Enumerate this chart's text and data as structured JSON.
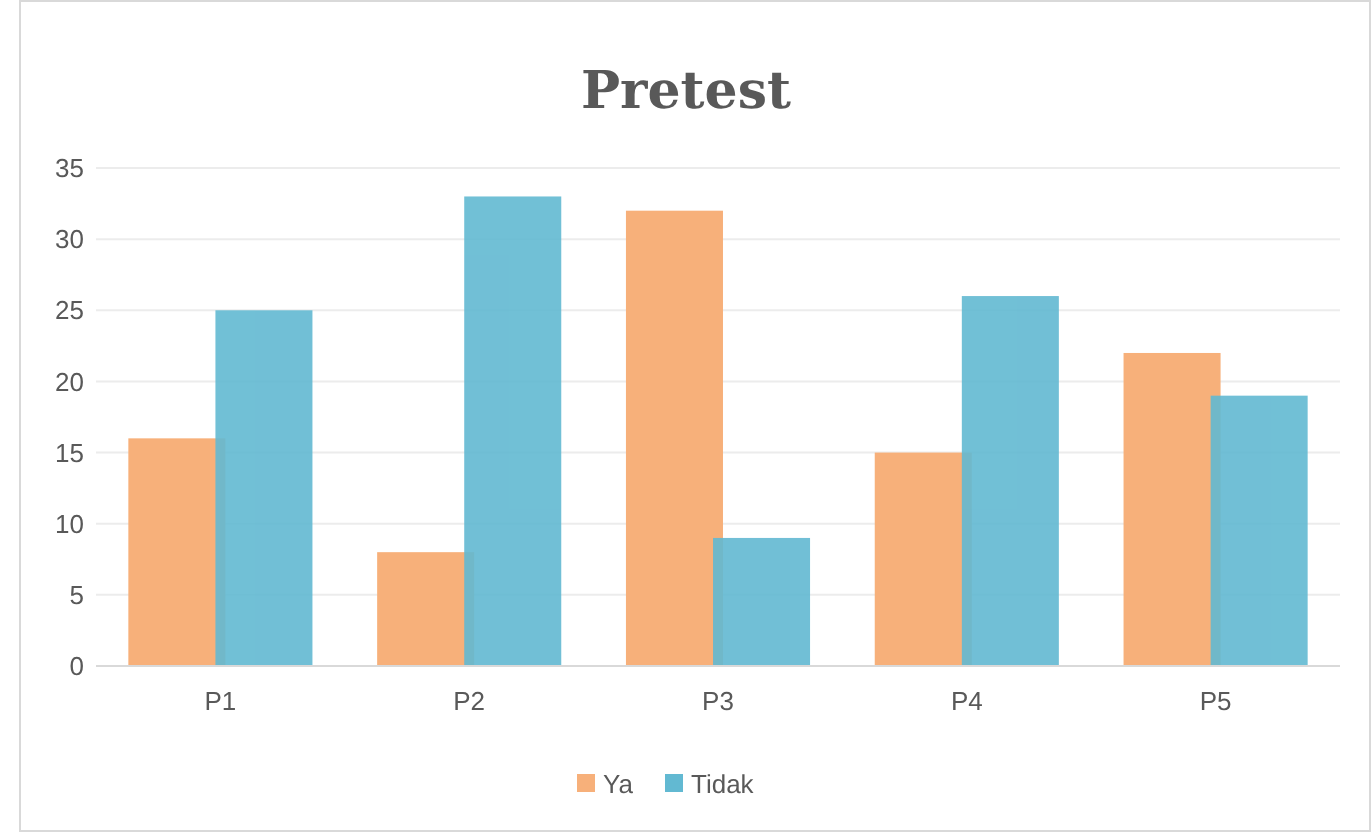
{
  "chart_data": {
    "type": "bar",
    "title": "Pretest",
    "categories": [
      "P1",
      "P2",
      "P3",
      "P4",
      "P5"
    ],
    "series": [
      {
        "name": "Ya",
        "color": "#f7b07a",
        "values": [
          16,
          8,
          32,
          15,
          22
        ]
      },
      {
        "name": "Tidak",
        "color": "#62b9d2",
        "values": [
          25,
          33,
          9,
          26,
          19
        ]
      }
    ],
    "ylim": [
      0,
      35
    ],
    "yticks": [
      0,
      5,
      10,
      15,
      20,
      25,
      30,
      35
    ],
    "grid": "y",
    "legend": "bottom"
  }
}
